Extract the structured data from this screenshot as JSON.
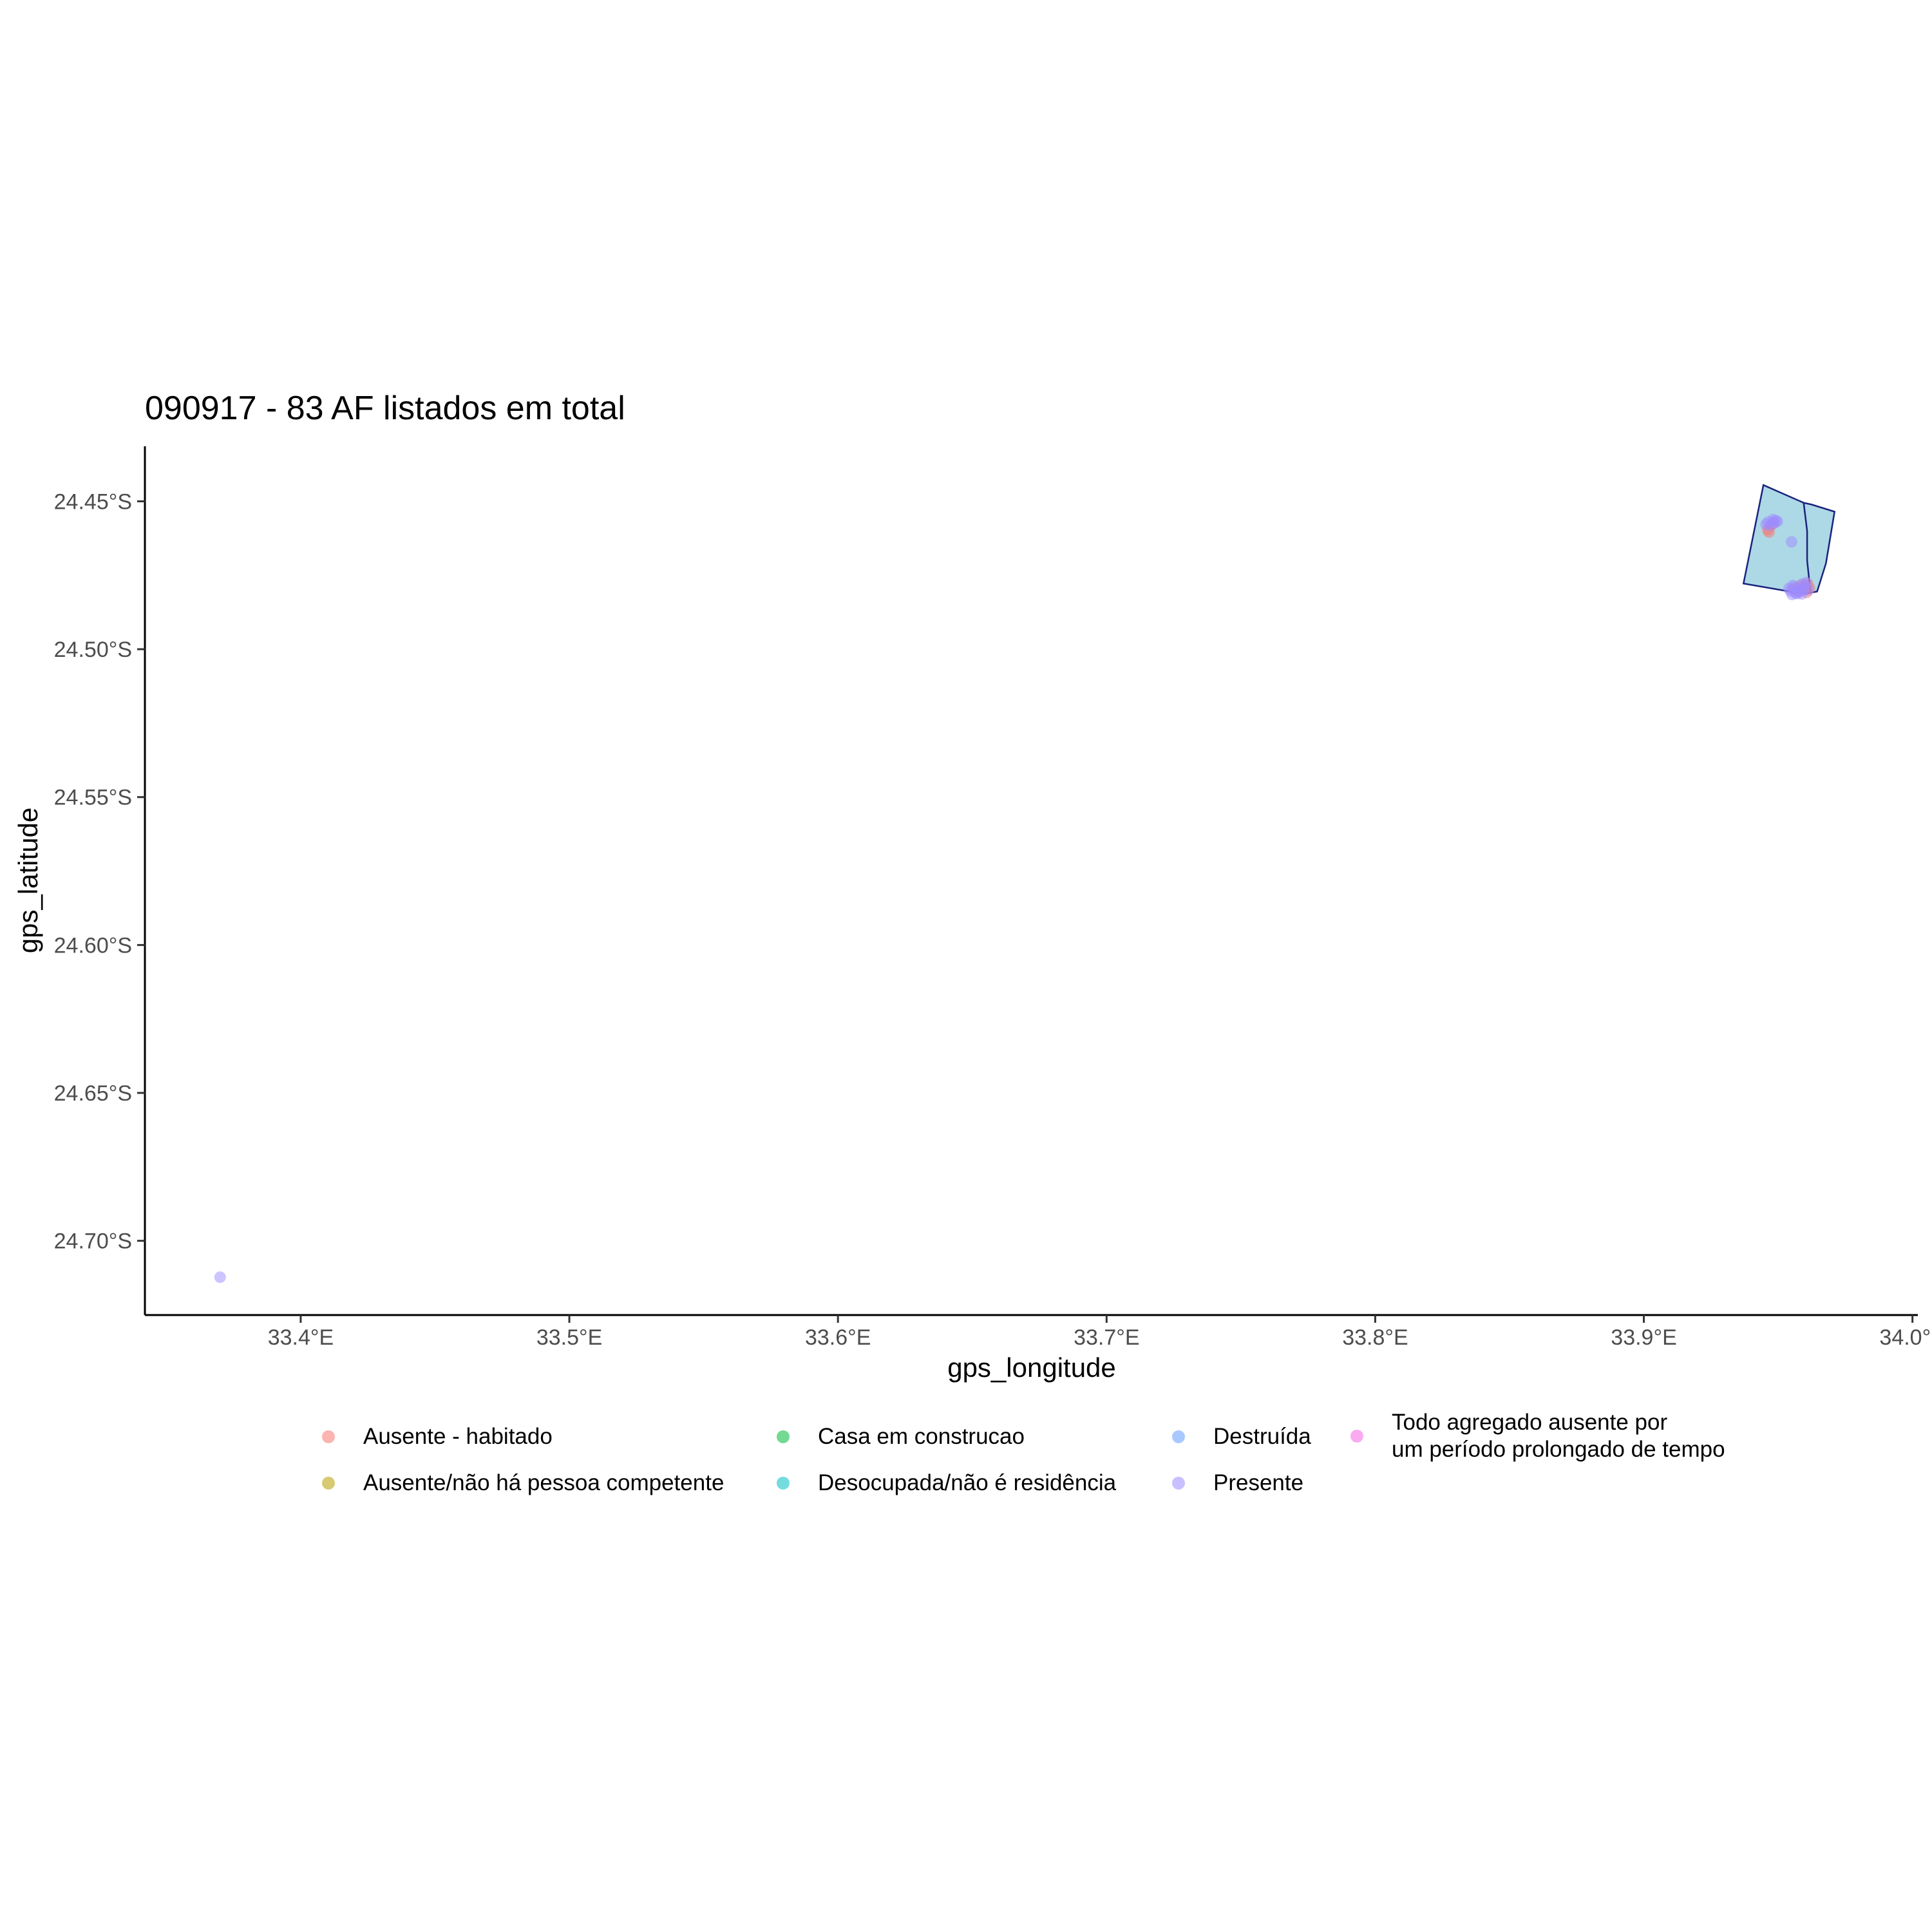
{
  "chart_data": {
    "type": "scatter",
    "title": "090917 - 83 AF listados em total",
    "xlabel": "gps_longitude",
    "ylabel": "gps_latitude",
    "xlim": [
      33.342,
      34.002
    ],
    "ylim": [
      -24.7251,
      -24.4314
    ],
    "x_ticks": [
      33.4,
      33.5,
      33.6,
      33.7,
      33.8,
      33.9,
      34.0
    ],
    "x_tick_labels": [
      "33.4°E",
      "33.5°E",
      "33.6°E",
      "33.7°E",
      "33.8°E",
      "33.9°E",
      "34.0°E"
    ],
    "y_ticks": [
      -24.45,
      -24.5,
      -24.55,
      -24.6,
      -24.65,
      -24.7
    ],
    "y_tick_labels": [
      "24.45°S",
      "24.50°S",
      "24.55°S",
      "24.60°S",
      "24.65°S",
      "24.70°S"
    ],
    "grid": false,
    "legend_position": "bottom",
    "polygons": [
      {
        "fill": "#add8e6",
        "stroke": "#1a237e",
        "points": [
          [
            33.9445,
            -24.4445
          ],
          [
            33.9595,
            -24.4505
          ],
          [
            33.9625,
            -24.4511
          ],
          [
            33.971,
            -24.4535
          ],
          [
            33.9678,
            -24.471
          ],
          [
            33.9645,
            -24.4805
          ],
          [
            33.9602,
            -24.4812
          ],
          [
            33.9555,
            -24.4807
          ],
          [
            33.9371,
            -24.4778
          ]
        ]
      }
    ],
    "polygon_divider": [
      [
        33.9595,
        -24.4505
      ],
      [
        33.9608,
        -24.46
      ],
      [
        33.9608,
        -24.47
      ],
      [
        33.962,
        -24.4805
      ]
    ],
    "series": [
      {
        "name": "Ausente - habitado",
        "color": "#F8766D",
        "points": [
          [
            33.9461,
            -24.4596
          ],
          [
            33.9466,
            -24.4604
          ],
          [
            33.9478,
            -24.4578
          ],
          [
            33.9558,
            -24.4798
          ],
          [
            33.9582,
            -24.4785
          ],
          [
            33.9596,
            -24.479
          ],
          [
            33.9606,
            -24.4808
          ],
          [
            33.9617,
            -24.4794
          ],
          [
            33.961,
            -24.4779
          ],
          [
            33.9573,
            -24.4803
          ]
        ]
      },
      {
        "name": "Ausente/não há pessoa competente",
        "color": "#B79F00",
        "points": []
      },
      {
        "name": "Casa em construcao",
        "color": "#00BA38",
        "points": []
      },
      {
        "name": "Desocupada/não é residência",
        "color": "#00BFC4",
        "points": []
      },
      {
        "name": "Destruída",
        "color": "#619CFF",
        "points": []
      },
      {
        "name": "Presente",
        "color": "#9B8CFF",
        "points": [
          [
            33.37,
            -24.7123
          ],
          [
            33.9455,
            -24.4578
          ],
          [
            33.9463,
            -24.457
          ],
          [
            33.947,
            -24.4582
          ],
          [
            33.9485,
            -24.4573
          ],
          [
            33.9491,
            -24.4566
          ],
          [
            33.9497,
            -24.4568
          ],
          [
            33.9481,
            -24.4562
          ],
          [
            33.955,
            -24.4637
          ],
          [
            33.954,
            -24.4795
          ],
          [
            33.9546,
            -24.4803
          ],
          [
            33.9552,
            -24.4815
          ],
          [
            33.956,
            -24.479
          ],
          [
            33.9565,
            -24.481
          ],
          [
            33.957,
            -24.4812
          ],
          [
            33.9575,
            -24.4795
          ],
          [
            33.958,
            -24.4806
          ],
          [
            33.9588,
            -24.4813
          ],
          [
            33.9595,
            -24.4799
          ],
          [
            33.96,
            -24.4784
          ],
          [
            33.9612,
            -24.48
          ],
          [
            33.9604,
            -24.4775
          ],
          [
            33.9555,
            -24.4785
          ],
          [
            33.959,
            -24.478
          ]
        ]
      },
      {
        "name": "Todo agregado ausente por\num período prolongado de tempo",
        "color": "#F564E3",
        "points": []
      }
    ]
  }
}
